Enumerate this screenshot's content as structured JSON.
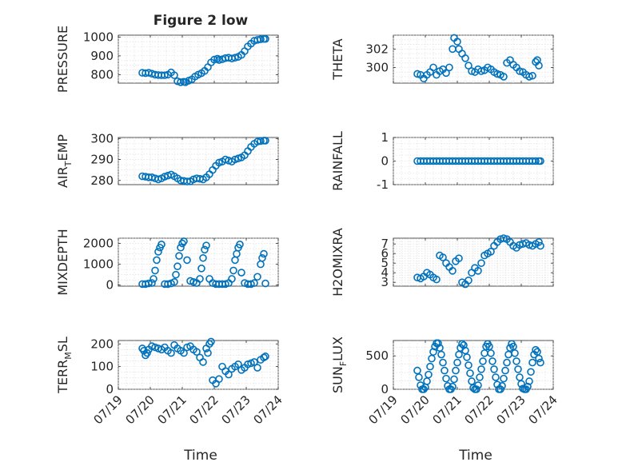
{
  "figure": {
    "title": "Figure 2 low",
    "xlabel": "Time"
  },
  "chart_data": [
    {
      "type": "scatter",
      "ylabel": "PRESSURE",
      "ylim": [
        755,
        1010
      ],
      "yticks": [
        "800",
        "900",
        "1000"
      ],
      "ytick_values": [
        800,
        900,
        1000
      ],
      "xlim": [
        0,
        5
      ],
      "show_xticks": false,
      "grid": true,
      "series": [
        {
          "x": [
            0.75,
            0.85,
            0.95,
            1.05,
            1.15,
            1.25,
            1.35,
            1.45,
            1.55,
            1.65,
            1.75,
            1.85,
            1.95,
            2.05,
            2.1,
            2.2,
            2.3,
            2.4,
            2.5,
            2.6,
            2.7,
            2.8,
            2.9,
            3.0,
            3.1,
            3.15,
            3.25,
            3.35,
            3.45,
            3.55,
            3.65,
            3.75,
            3.85,
            3.95,
            4.05,
            4.15,
            4.25,
            4.35,
            4.45,
            4.55,
            4.6
          ],
          "y": [
            810,
            808,
            810,
            805,
            800,
            798,
            797,
            797,
            800,
            812,
            797,
            765,
            760,
            762,
            760,
            768,
            775,
            790,
            800,
            808,
            820,
            840,
            865,
            880,
            885,
            878,
            882,
            888,
            890,
            886,
            890,
            895,
            905,
            925,
            950,
            965,
            980,
            985,
            988,
            990,
            990
          ]
        }
      ]
    },
    {
      "type": "scatter",
      "ylabel": "THETA",
      "ylim": [
        298.3,
        303.5
      ],
      "yticks": [
        "300",
        "302"
      ],
      "ytick_values": [
        300,
        302
      ],
      "xlim": [
        0,
        5
      ],
      "show_xticks": false,
      "grid": true,
      "series": [
        {
          "x": [
            0.75,
            0.85,
            0.95,
            1.05,
            1.15,
            1.25,
            1.35,
            1.45,
            1.55,
            1.65,
            1.75,
            1.85,
            1.9,
            2.0,
            2.05,
            2.15,
            2.25,
            2.35,
            2.45,
            2.55,
            2.65,
            2.75,
            2.85,
            2.95,
            3.05,
            3.15,
            3.25,
            3.35,
            3.45,
            3.55,
            3.65,
            3.75,
            3.85,
            3.95,
            4.05,
            4.15,
            4.25,
            4.35,
            4.45,
            4.5,
            4.55
          ],
          "y": [
            299.3,
            299.2,
            298.8,
            299.2,
            299.5,
            300.0,
            299.2,
            299.6,
            299.8,
            299.4,
            300.0,
            302.0,
            303.2,
            302.8,
            302.0,
            301.5,
            301.0,
            300.2,
            299.6,
            299.5,
            299.8,
            299.6,
            299.7,
            300.0,
            299.8,
            299.5,
            299.3,
            299.2,
            299.0,
            300.5,
            300.8,
            300.3,
            300.0,
            299.6,
            299.5,
            299.2,
            299.0,
            299.1,
            300.6,
            300.8,
            300.2
          ]
        }
      ]
    },
    {
      "type": "scatter",
      "ylabel": "AIR_TEMP",
      "ylabel_main": "AIR",
      "ylabel_sub": "T",
      "ylabel_tail": "EMP",
      "ylim": [
        278,
        300.5
      ],
      "yticks": [
        "280",
        "290",
        "300"
      ],
      "ytick_values": [
        280,
        290,
        300
      ],
      "xlim": [
        0,
        5
      ],
      "show_xticks": false,
      "grid": true,
      "series": [
        {
          "x": [
            0.75,
            0.85,
            0.95,
            1.05,
            1.15,
            1.25,
            1.35,
            1.45,
            1.55,
            1.65,
            1.75,
            1.85,
            1.95,
            2.05,
            2.15,
            2.25,
            2.35,
            2.45,
            2.55,
            2.65,
            2.75,
            2.85,
            2.95,
            3.05,
            3.15,
            3.25,
            3.35,
            3.45,
            3.55,
            3.65,
            3.75,
            3.85,
            3.95,
            4.05,
            4.15,
            4.25,
            4.35,
            4.45,
            4.55,
            4.6
          ],
          "y": [
            282,
            281.8,
            281.5,
            281.5,
            281,
            280.5,
            281,
            281.8,
            282.3,
            282.8,
            282,
            281,
            280,
            279.8,
            279.5,
            279.6,
            280.5,
            281,
            280.8,
            280.5,
            281.5,
            283,
            285,
            287,
            288.5,
            289,
            290,
            289.5,
            289,
            290,
            290.5,
            291,
            292,
            294,
            296,
            297.5,
            298.5,
            298.8,
            299,
            299
          ]
        }
      ]
    },
    {
      "type": "scatter",
      "ylabel": "RAINFALL",
      "ylim": [
        -1,
        1
      ],
      "yticks": [
        "-1",
        "0",
        "1"
      ],
      "ytick_values": [
        -1,
        0,
        1
      ],
      "xlim": [
        0,
        5
      ],
      "show_xticks": false,
      "grid": true,
      "series": [
        {
          "x": [
            0.75,
            0.85,
            0.95,
            1.05,
            1.15,
            1.25,
            1.35,
            1.45,
            1.55,
            1.65,
            1.75,
            1.85,
            1.95,
            2.05,
            2.15,
            2.25,
            2.35,
            2.45,
            2.55,
            2.65,
            2.75,
            2.85,
            2.95,
            3.05,
            3.15,
            3.25,
            3.35,
            3.45,
            3.55,
            3.65,
            3.75,
            3.85,
            3.95,
            4.05,
            4.15,
            4.25,
            4.35,
            4.45,
            4.55,
            4.6
          ],
          "y": [
            0,
            0,
            0,
            0,
            0,
            0,
            0,
            0,
            0,
            0,
            0,
            0,
            0,
            0,
            0,
            0,
            0,
            0,
            0,
            0,
            0,
            0,
            0,
            0,
            0,
            0,
            0,
            0,
            0,
            0,
            0,
            0,
            0,
            0,
            0,
            0,
            0,
            0,
            0,
            0
          ]
        }
      ]
    },
    {
      "type": "scatter",
      "ylabel": "MIXDEPTH",
      "ylim": [
        -50,
        2250
      ],
      "yticks": [
        "0",
        "1000",
        "2000"
      ],
      "ytick_values": [
        0,
        1000,
        2000
      ],
      "xlim": [
        0,
        5
      ],
      "show_xticks": false,
      "grid": true,
      "series": [
        {
          "x": [
            0.75,
            0.85,
            0.95,
            1.05,
            1.1,
            1.15,
            1.2,
            1.25,
            1.3,
            1.35,
            1.45,
            1.55,
            1.65,
            1.75,
            1.8,
            1.85,
            1.9,
            1.95,
            2.0,
            2.05,
            2.15,
            2.25,
            2.35,
            2.45,
            2.55,
            2.6,
            2.65,
            2.7,
            2.75,
            2.85,
            2.95,
            3.05,
            3.15,
            3.25,
            3.35,
            3.45,
            3.55,
            3.6,
            3.65,
            3.7,
            3.75,
            3.8,
            3.85,
            3.95,
            4.05,
            4.15,
            4.25,
            4.35,
            4.45,
            4.5,
            4.55,
            4.6
          ],
          "y": [
            50,
            50,
            80,
            100,
            300,
            700,
            1200,
            1600,
            1800,
            1950,
            50,
            50,
            80,
            150,
            500,
            900,
            1400,
            1800,
            2000,
            2100,
            1200,
            200,
            150,
            100,
            300,
            800,
            1300,
            1700,
            1900,
            300,
            100,
            50,
            50,
            50,
            50,
            100,
            300,
            700,
            1200,
            1500,
            1800,
            1950,
            600,
            100,
            50,
            50,
            100,
            400,
            1000,
            1300,
            1500,
            80
          ]
        }
      ]
    },
    {
      "type": "scatter",
      "ylabel": "H2OMIXRA",
      "ylim": [
        2.6,
        7.6
      ],
      "yticks": [
        "3",
        "4",
        "5",
        "6",
        "7"
      ],
      "ytick_values": [
        3,
        4,
        5,
        6,
        7
      ],
      "xlim": [
        0,
        5
      ],
      "show_xticks": false,
      "grid": true,
      "series": [
        {
          "x": [
            0.75,
            0.85,
            0.95,
            1.05,
            1.15,
            1.25,
            1.35,
            1.45,
            1.55,
            1.65,
            1.75,
            1.85,
            1.95,
            2.05,
            2.15,
            2.25,
            2.35,
            2.45,
            2.55,
            2.65,
            2.75,
            2.85,
            2.95,
            3.05,
            3.15,
            3.25,
            3.35,
            3.45,
            3.55,
            3.65,
            3.75,
            3.85,
            3.95,
            4.05,
            4.15,
            4.25,
            4.35,
            4.45,
            4.55,
            4.6
          ],
          "y": [
            3.5,
            3.4,
            3.6,
            4.0,
            3.8,
            3.5,
            3.3,
            5.8,
            5.6,
            5.0,
            4.6,
            4.2,
            5.2,
            5.5,
            3.0,
            2.8,
            3.2,
            4.0,
            4.5,
            4.2,
            5.0,
            5.8,
            6.0,
            6.2,
            6.8,
            7.2,
            7.5,
            7.6,
            7.5,
            7.2,
            6.8,
            6.6,
            6.9,
            7.0,
            7.1,
            6.9,
            6.8,
            7.0,
            7.2,
            6.8
          ]
        }
      ]
    },
    {
      "type": "scatter",
      "ylabel": "TERR_MSL",
      "ylabel_main": "TERR",
      "ylabel_sub": "M",
      "ylabel_tail": "SL",
      "ylim": [
        0,
        215
      ],
      "yticks": [
        "0",
        "100",
        "200"
      ],
      "ytick_values": [
        0,
        100,
        200
      ],
      "xlim": [
        0,
        5
      ],
      "xticks": [
        "07/19",
        "07/20",
        "07/21",
        "07/22",
        "07/23",
        "07/24"
      ],
      "xtick_values": [
        0,
        1,
        2,
        3,
        4,
        5
      ],
      "show_xticks": true,
      "grid": true,
      "series": [
        {
          "x": [
            0.75,
            0.8,
            0.85,
            0.9,
            0.95,
            1.05,
            1.15,
            1.25,
            1.35,
            1.45,
            1.55,
            1.65,
            1.75,
            1.85,
            1.95,
            2.05,
            2.15,
            2.25,
            2.35,
            2.45,
            2.55,
            2.65,
            2.75,
            2.8,
            2.85,
            2.9,
            2.95,
            3.05,
            3.15,
            3.25,
            3.35,
            3.45,
            3.55,
            3.65,
            3.75,
            3.85,
            3.95,
            4.05,
            4.15,
            4.25,
            4.35,
            4.45,
            4.55,
            4.6
          ],
          "y": [
            180,
            170,
            150,
            160,
            175,
            190,
            185,
            180,
            175,
            185,
            170,
            160,
            195,
            180,
            170,
            160,
            185,
            190,
            175,
            165,
            140,
            120,
            180,
            160,
            200,
            210,
            40,
            25,
            45,
            100,
            80,
            65,
            90,
            100,
            110,
            85,
            95,
            110,
            115,
            120,
            95,
            130,
            140,
            145
          ]
        }
      ]
    },
    {
      "type": "scatter",
      "ylabel": "SUN_FLUX",
      "ylabel_main": "SUN",
      "ylabel_sub": "F",
      "ylabel_tail": "LUX",
      "ylim": [
        0,
        730
      ],
      "yticks": [
        "0",
        "500"
      ],
      "ytick_values": [
        0,
        500
      ],
      "xlim": [
        0,
        5
      ],
      "xticks": [
        "07/19",
        "07/20",
        "07/21",
        "07/22",
        "07/23",
        "07/24"
      ],
      "xtick_values": [
        0,
        1,
        2,
        3,
        4,
        5
      ],
      "show_xticks": true,
      "grid": true,
      "series": [
        {
          "x": [
            0.75,
            0.8,
            0.85,
            0.9,
            0.95,
            1.0,
            1.05,
            1.1,
            1.15,
            1.2,
            1.25,
            1.3,
            1.35,
            1.4,
            1.45,
            1.5,
            1.55,
            1.6,
            1.65,
            1.7,
            1.75,
            1.8,
            1.85,
            1.9,
            1.95,
            2.0,
            2.05,
            2.1,
            2.15,
            2.2,
            2.25,
            2.3,
            2.35,
            2.4,
            2.45,
            2.5,
            2.55,
            2.6,
            2.65,
            2.7,
            2.75,
            2.8,
            2.85,
            2.9,
            2.95,
            3.0,
            3.05,
            3.1,
            3.15,
            3.2,
            3.25,
            3.3,
            3.35,
            3.4,
            3.45,
            3.5,
            3.55,
            3.6,
            3.65,
            3.7,
            3.75,
            3.8,
            3.85,
            3.9,
            3.95,
            4.0,
            4.05,
            4.1,
            4.15,
            4.2,
            4.25,
            4.3,
            4.35,
            4.4,
            4.45,
            4.5,
            4.55,
            4.6
          ],
          "y": [
            280,
            180,
            60,
            0,
            0,
            30,
            120,
            220,
            340,
            460,
            560,
            640,
            690,
            690,
            620,
            520,
            400,
            280,
            160,
            50,
            0,
            0,
            40,
            150,
            280,
            400,
            520,
            620,
            680,
            660,
            580,
            480,
            360,
            240,
            120,
            20,
            0,
            0,
            60,
            180,
            300,
            420,
            540,
            640,
            680,
            640,
            540,
            420,
            300,
            180,
            70,
            0,
            0,
            50,
            160,
            280,
            400,
            520,
            620,
            680,
            640,
            540,
            420,
            300,
            180,
            80,
            10,
            0,
            0,
            40,
            120,
            260,
            400,
            520,
            590,
            560,
            460,
            400
          ]
        }
      ]
    }
  ]
}
